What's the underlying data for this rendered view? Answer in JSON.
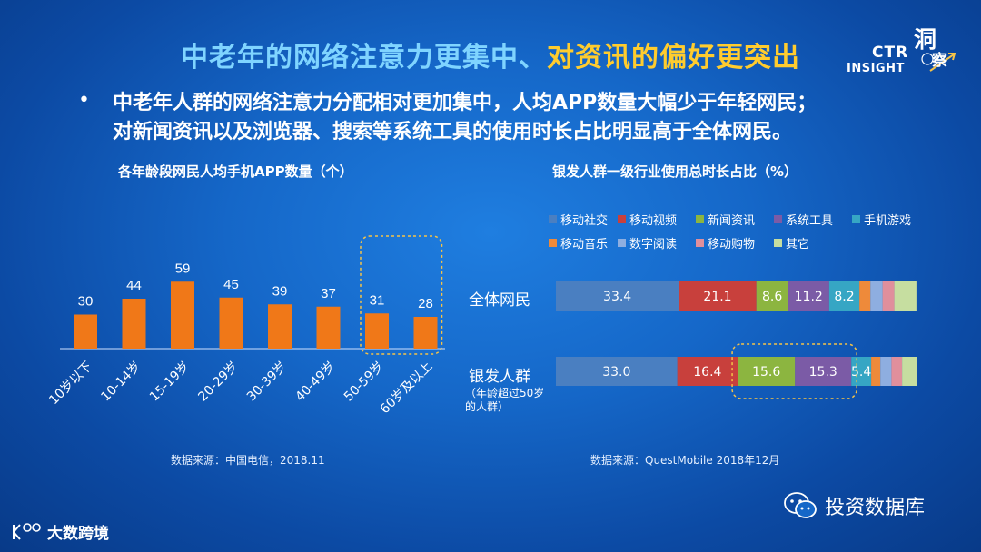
{
  "header": {
    "title_part1": "中老年的网络注意力更集中、",
    "title_part2": "对资讯的偏好更突出",
    "logo_ctr": "CTR",
    "logo_insight": "INSIGHT",
    "logo_dong": "洞",
    "logo_cha": "察"
  },
  "bullet": {
    "line1": "中老年人群的网络注意力分配相对更加集中，人均APP数量大幅少于年轻网民；",
    "line2": "对新闻资讯以及浏览器、搜索等系统工具的使用时长占比明显高于全体网民。"
  },
  "chart_data": [
    {
      "type": "bar",
      "title": "各年龄段网民人均手机APP数量（个）",
      "categories": [
        "10岁以下",
        "10-14岁",
        "15-19岁",
        "20-29岁",
        "30-39岁",
        "40-49岁",
        "50-59岁",
        "60岁及以上"
      ],
      "values": [
        30,
        44,
        59,
        45,
        39,
        37,
        31,
        28
      ],
      "color": "#f07818",
      "highlight": [
        "50-59岁",
        "60岁及以上"
      ],
      "highlight_color": "#f5c348",
      "source": "数据来源：中国电信，2018.11"
    },
    {
      "type": "bar",
      "stacked": true,
      "horizontal": true,
      "title": "银发人群一级行业使用总时长占比（%）",
      "categories": [
        "全体网民",
        "银发人群"
      ],
      "category_note": "（年龄超过50岁的人群）",
      "series": [
        {
          "name": "移动社交",
          "color": "#4a7fc1",
          "values": [
            33.4,
            33.0
          ]
        },
        {
          "name": "移动视频",
          "color": "#c8403c",
          "values": [
            21.1,
            16.4
          ]
        },
        {
          "name": "新闻资讯",
          "color": "#8cb540",
          "values": [
            8.6,
            15.6
          ]
        },
        {
          "name": "系统工具",
          "color": "#7b5ba6",
          "values": [
            11.2,
            15.3
          ]
        },
        {
          "name": "手机游戏",
          "color": "#36a6c4",
          "values": [
            8.2,
            5.4
          ]
        },
        {
          "name": "移动音乐",
          "color": "#ee8a3a",
          "values": [
            3.0,
            2.5
          ]
        },
        {
          "name": "数字阅读",
          "color": "#8eaee0",
          "values": [
            3.3,
            3.0
          ]
        },
        {
          "name": "移动购物",
          "color": "#e08f9c",
          "values": [
            3.2,
            2.9
          ]
        },
        {
          "name": "其它",
          "color": "#c6dea0",
          "values": [
            6.0,
            4.0
          ]
        }
      ],
      "highlight": [
        "新闻资讯",
        "系统工具"
      ],
      "highlight_color": "#f5c348",
      "source": "数据来源：QuestMobile 2018年12月"
    }
  ],
  "footer": {
    "wechat_label": "投资数据库",
    "corner_brand": "大数跨境"
  }
}
